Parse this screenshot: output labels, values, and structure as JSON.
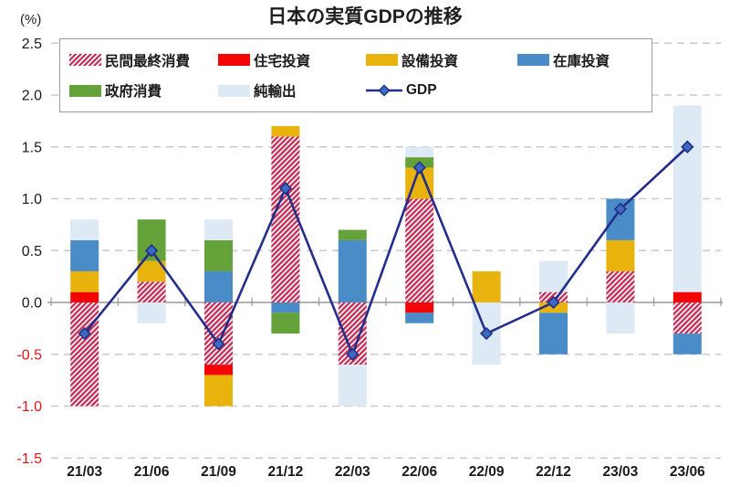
{
  "chart_data": {
    "type": "bar",
    "subtype": "stacked-bar-with-line",
    "title": "日本の実質GDPの推移",
    "unit_label": "(%)",
    "categories": [
      "21/03",
      "21/06",
      "21/09",
      "21/12",
      "22/03",
      "22/06",
      "22/09",
      "22/12",
      "23/03",
      "23/06"
    ],
    "series": [
      {
        "name": "民間最終消費",
        "style": "hatch",
        "color": "#c52b55",
        "values": [
          -1.0,
          0.2,
          -0.6,
          1.6,
          -0.6,
          1.0,
          0,
          0.1,
          0.3,
          -0.3
        ]
      },
      {
        "name": "住宅投資",
        "style": "solid",
        "color": "#f20505",
        "values": [
          0.1,
          0,
          -0.1,
          0,
          0,
          -0.1,
          0,
          0,
          0,
          0.1
        ]
      },
      {
        "name": "設備投資",
        "style": "solid",
        "color": "#e8b30d",
        "values": [
          0.2,
          0.2,
          -0.3,
          0.1,
          0,
          0.3,
          0.3,
          -0.1,
          0.3,
          0
        ]
      },
      {
        "name": "在庫投資",
        "style": "solid",
        "color": "#4a8cc7",
        "values": [
          0.3,
          0,
          0.3,
          -0.1,
          0.6,
          -0.1,
          0,
          -0.4,
          0.4,
          -0.2
        ]
      },
      {
        "name": "政府消費",
        "style": "solid",
        "color": "#66a23a",
        "values": [
          0,
          0.4,
          0.3,
          -0.2,
          0.1,
          0.1,
          0,
          0,
          0,
          0
        ]
      },
      {
        "name": "純輸出",
        "style": "solid",
        "color": "#dde9f4",
        "values": [
          0.2,
          -0.2,
          0.2,
          0,
          -0.4,
          0.1,
          -0.6,
          0.3,
          -0.3,
          1.8
        ]
      }
    ],
    "line_series": {
      "name": "GDP",
      "color": "#232e8a",
      "marker_fill": "#3c6cc0",
      "values": [
        -0.3,
        0.5,
        -0.4,
        1.1,
        -0.5,
        1.3,
        -0.3,
        0.0,
        0.9,
        1.5
      ]
    },
    "ylim": [
      -1.5,
      2.5
    ],
    "ytick_step": 0.5,
    "grid": true,
    "legend_position": "top-left-inside",
    "grid_color": "#cacaca",
    "zero_line_color": "#9a9a9a",
    "tick_color": "#1a1a1a",
    "negative_tick_color": "#e81313",
    "x_label_color": "#1a1a1a"
  }
}
